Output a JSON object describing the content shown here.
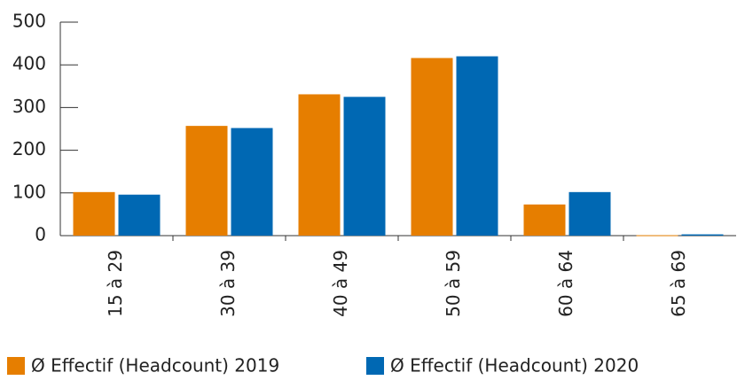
{
  "chart_data": {
    "type": "bar",
    "categories": [
      "15 à 29",
      "30 à 39",
      "40 à 49",
      "50 à 59",
      "60 à 64",
      "65 à 69"
    ],
    "series": [
      {
        "name": "Ø Effectif (Headcount) 2019",
        "color": "#e67e00",
        "values": [
          102,
          257,
          331,
          416,
          73,
          1
        ]
      },
      {
        "name": "Ø Effectif (Headcount) 2020",
        "color": "#0068b3",
        "values": [
          96,
          252,
          325,
          420,
          102,
          3
        ]
      }
    ],
    "ylim": [
      0,
      500
    ],
    "yticks": [
      0,
      100,
      200,
      300,
      400,
      500
    ],
    "grid": false,
    "legend": "bottom"
  }
}
